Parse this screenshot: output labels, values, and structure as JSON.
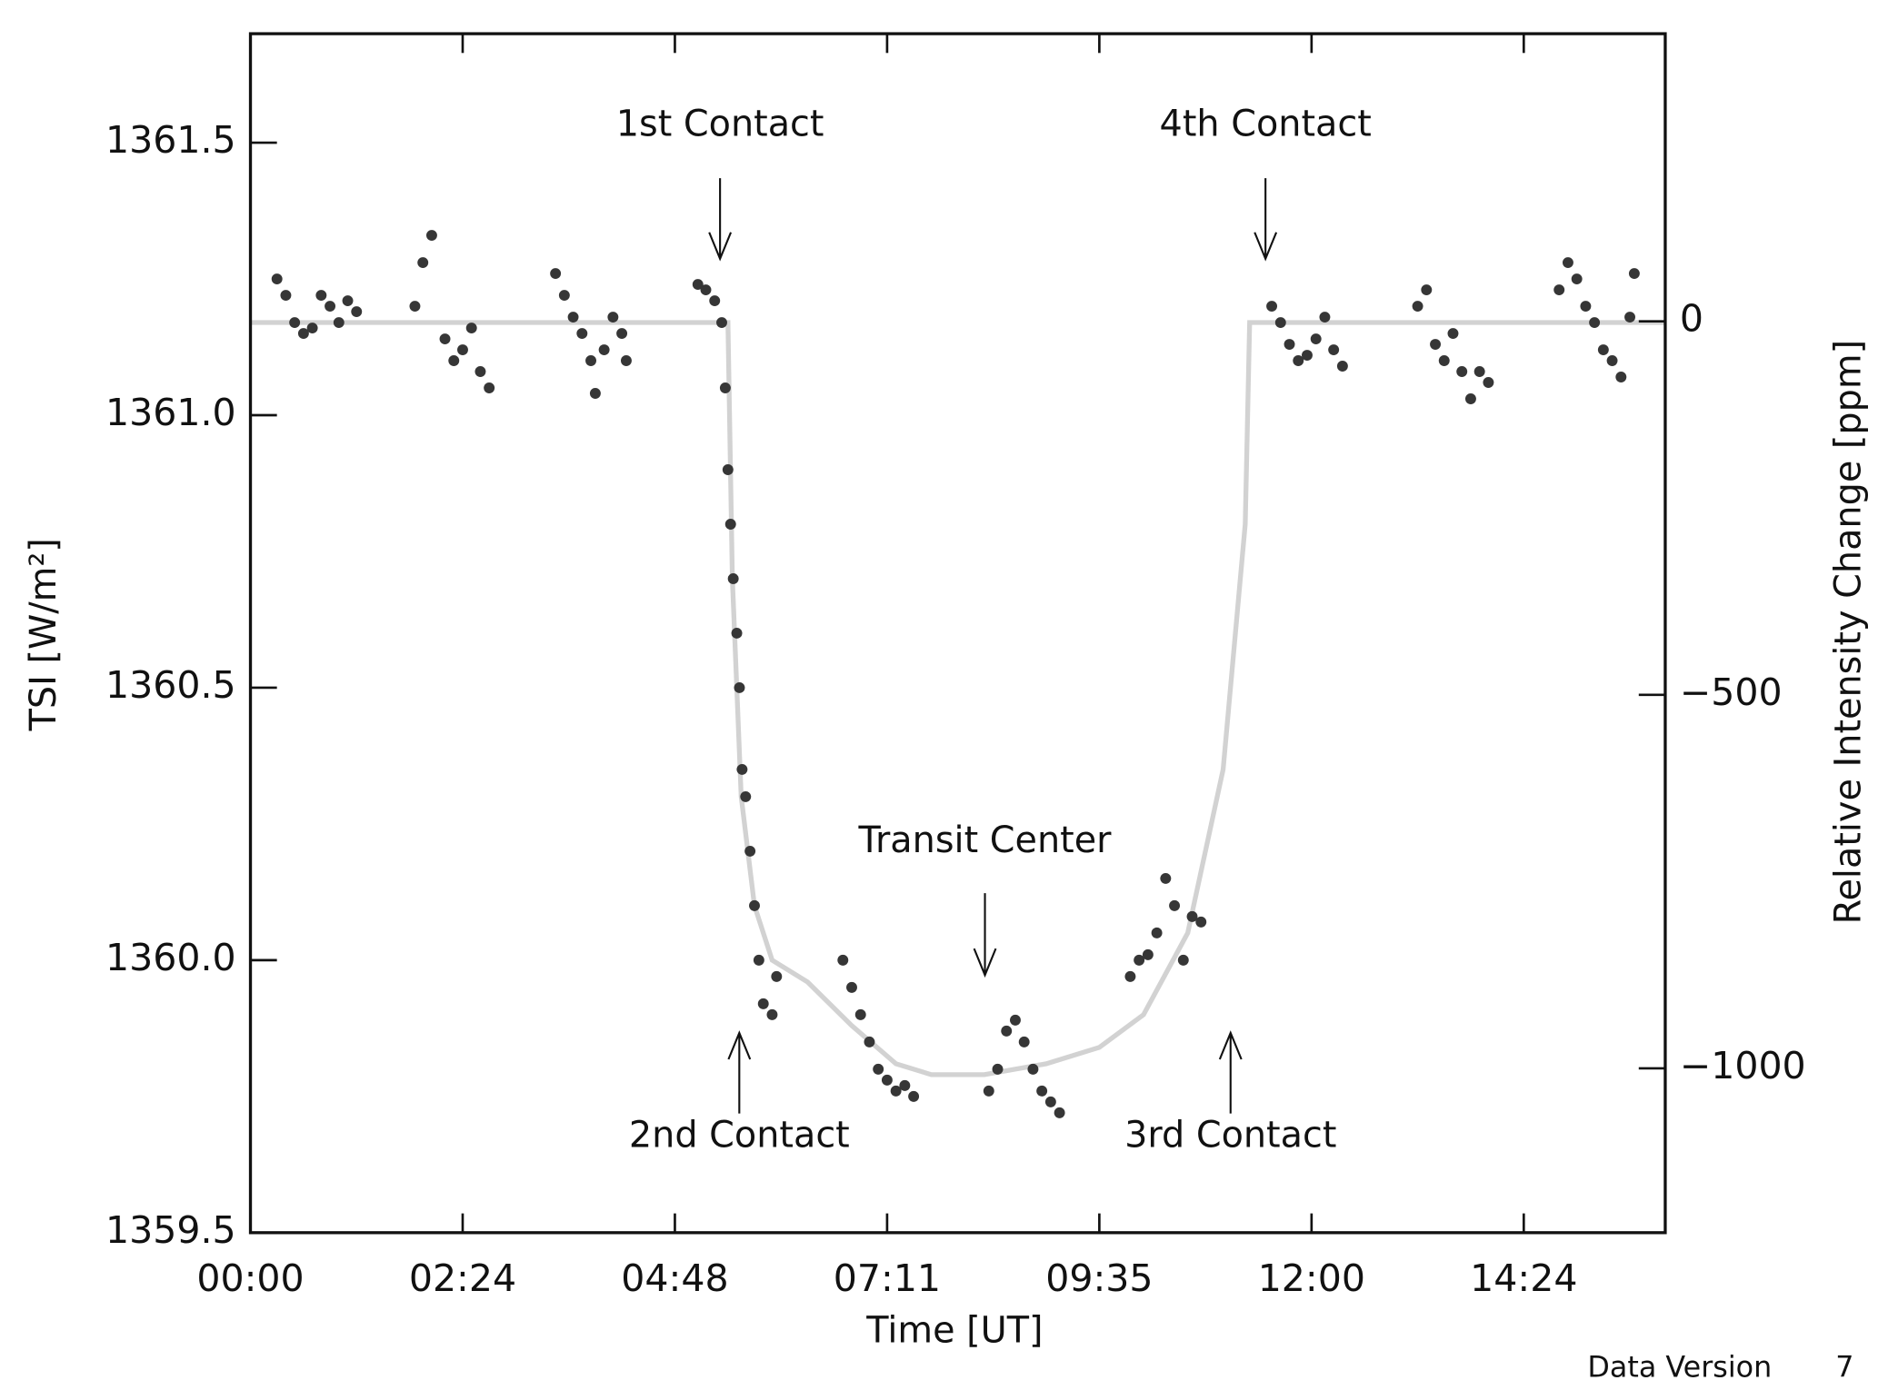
{
  "chart_data": {
    "type": "scatter",
    "x_label": "Time [UT]",
    "y_label": "TSI [W/m²]",
    "y2_label": "Relative Intensity Change [ppm]",
    "xlim": [
      0,
      16
    ],
    "xticks": [
      {
        "value": 0,
        "label": "00:00"
      },
      {
        "value": 2.4,
        "label": "02:24"
      },
      {
        "value": 4.8,
        "label": "04:48"
      },
      {
        "value": 7.2,
        "label": "07:11"
      },
      {
        "value": 9.6,
        "label": "09:35"
      },
      {
        "value": 12,
        "label": "12:00"
      },
      {
        "value": 14.4,
        "label": "14:24"
      }
    ],
    "ylim": [
      1359.5,
      1361.7
    ],
    "yticks": [
      1359.5,
      {
        "value": 1360.0,
        "label": "1360.0"
      },
      1360.5,
      {
        "value": 1361.0,
        "label": "1361.0"
      },
      1361.5
    ],
    "y2lim": [
      -1220,
      385
    ],
    "y2ticks": [
      {
        "value": -1000,
        "label": "−1000"
      },
      {
        "value": -500,
        "label": "−500"
      },
      0
    ],
    "points": {
      "color": "#363636",
      "x": [
        0.3,
        0.4,
        0.5,
        0.6,
        0.7,
        0.8,
        0.9,
        1.0,
        1.1,
        1.2,
        1.86,
        1.95,
        2.05,
        2.2,
        2.3,
        2.4,
        2.5,
        2.6,
        2.7,
        3.45,
        3.55,
        3.65,
        3.75,
        3.85,
        3.9,
        4.0,
        4.1,
        4.2,
        4.25,
        5.06,
        5.15,
        5.25,
        5.33,
        5.37,
        5.4,
        5.43,
        5.46,
        5.5,
        5.53,
        5.56,
        5.6,
        5.65,
        5.7,
        5.75,
        5.8,
        5.9,
        5.95,
        6.7,
        6.8,
        6.9,
        7.0,
        7.1,
        7.2,
        7.3,
        7.4,
        7.5,
        8.35,
        8.45,
        8.55,
        8.65,
        8.75,
        8.85,
        8.95,
        9.05,
        9.15,
        9.95,
        10.05,
        10.15,
        10.25,
        10.35,
        10.45,
        10.55,
        10.65,
        10.75,
        11.55,
        11.65,
        11.75,
        11.85,
        11.95,
        12.05,
        12.15,
        12.25,
        12.35,
        13.2,
        13.3,
        13.4,
        13.5,
        13.6,
        13.7,
        13.8,
        13.9,
        14.0,
        14.8,
        14.9,
        15.0,
        15.1,
        15.2,
        15.3,
        15.4,
        15.5,
        15.6,
        15.65
      ],
      "y": [
        1361.25,
        1361.22,
        1361.17,
        1361.15,
        1361.16,
        1361.22,
        1361.2,
        1361.17,
        1361.21,
        1361.19,
        1361.2,
        1361.28,
        1361.33,
        1361.14,
        1361.1,
        1361.12,
        1361.16,
        1361.08,
        1361.05,
        1361.26,
        1361.22,
        1361.18,
        1361.15,
        1361.1,
        1361.04,
        1361.12,
        1361.18,
        1361.15,
        1361.1,
        1361.24,
        1361.23,
        1361.21,
        1361.17,
        1361.05,
        1360.9,
        1360.8,
        1360.7,
        1360.6,
        1360.5,
        1360.35,
        1360.3,
        1360.2,
        1360.1,
        1360.0,
        1359.92,
        1359.9,
        1359.97,
        1360.0,
        1359.95,
        1359.9,
        1359.85,
        1359.8,
        1359.78,
        1359.76,
        1359.77,
        1359.75,
        1359.76,
        1359.8,
        1359.87,
        1359.89,
        1359.85,
        1359.8,
        1359.76,
        1359.74,
        1359.72,
        1359.97,
        1360.0,
        1360.01,
        1360.05,
        1360.15,
        1360.1,
        1360.0,
        1360.08,
        1360.07,
        1361.2,
        1361.17,
        1361.13,
        1361.1,
        1361.11,
        1361.14,
        1361.18,
        1361.12,
        1361.09,
        1361.2,
        1361.23,
        1361.13,
        1361.1,
        1361.15,
        1361.08,
        1361.03,
        1361.08,
        1361.06,
        1361.23,
        1361.28,
        1361.25,
        1361.2,
        1361.17,
        1361.12,
        1361.1,
        1361.07,
        1361.18,
        1361.26
      ]
    },
    "model": {
      "color": "#d2d2d2",
      "x": [
        0,
        5.4,
        5.45,
        5.55,
        5.7,
        5.9,
        6.3,
        6.8,
        7.3,
        7.7,
        8.3,
        9.0,
        9.6,
        10.1,
        10.6,
        11.0,
        11.25,
        11.3,
        16
      ],
      "y": [
        1361.17,
        1361.17,
        1360.7,
        1360.3,
        1360.1,
        1360.0,
        1359.96,
        1359.88,
        1359.81,
        1359.79,
        1359.79,
        1359.81,
        1359.84,
        1359.9,
        1360.05,
        1360.35,
        1360.8,
        1361.17,
        1361.17
      ]
    },
    "annotations": [
      "1st Contact",
      "4th Contact",
      "Transit Center",
      "2nd Contact",
      "3rd Contact"
    ],
    "footnote_label": "Data Version",
    "footnote_value": 7
  }
}
